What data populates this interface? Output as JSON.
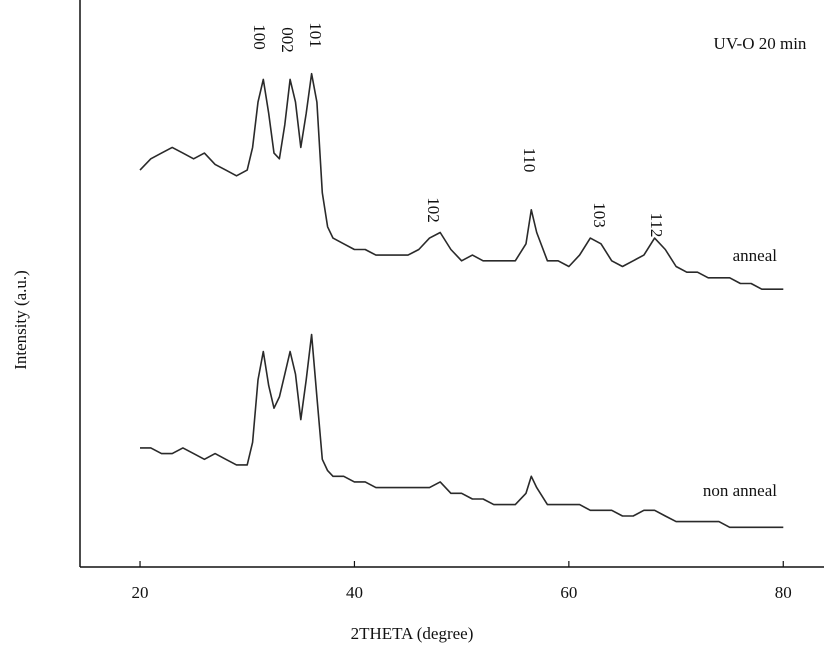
{
  "chart_data": {
    "type": "line",
    "title": "UV-O 20 min",
    "x_label": "2THETA (degree)",
    "y_label": "Intensity (a.u.)",
    "annotations": [
      "100",
      "002",
      "101",
      "102",
      "110",
      "103",
      "112"
    ],
    "x": [
      20,
      21,
      22,
      23,
      24,
      25,
      26,
      27,
      28,
      29,
      30,
      30.5,
      31,
      31.5,
      32,
      32.5,
      33,
      33.5,
      34,
      34.5,
      35,
      35.5,
      36,
      36.5,
      37,
      37.5,
      38,
      39,
      40,
      41,
      42,
      43,
      44,
      45,
      46,
      47,
      48,
      49,
      50,
      51,
      52,
      53,
      54,
      55,
      56,
      56.5,
      57,
      58,
      59,
      60,
      61,
      62,
      63,
      64,
      65,
      66,
      67,
      68,
      69,
      70,
      71,
      72,
      73,
      74,
      75,
      76,
      77,
      78,
      79,
      80
    ],
    "series": [
      {
        "name": "anneal",
        "color": "#2a2a2a",
        "values": [
          70,
          72,
          73,
          74,
          73,
          72,
          73,
          71,
          70,
          69,
          70,
          74,
          82,
          86,
          80,
          73,
          72,
          78,
          86,
          82,
          74,
          80,
          87,
          82,
          66,
          60,
          58,
          57,
          56,
          56,
          55,
          55,
          55,
          55,
          56,
          58,
          59,
          56,
          54,
          55,
          54,
          54,
          54,
          54,
          57,
          63,
          59,
          54,
          54,
          53,
          55,
          58,
          57,
          54,
          53,
          54,
          55,
          58,
          56,
          53,
          52,
          52,
          51,
          51,
          51,
          50,
          50,
          49,
          49,
          49
        ]
      },
      {
        "name": "non anneal",
        "color": "#2a2a2a",
        "values": [
          21,
          21,
          20,
          20,
          21,
          20,
          19,
          20,
          19,
          18,
          18,
          22,
          33,
          38,
          32,
          28,
          30,
          34,
          38,
          34,
          26,
          33,
          41,
          30,
          19,
          17,
          16,
          16,
          15,
          15,
          14,
          14,
          14,
          14,
          14,
          14,
          15,
          13,
          13,
          12,
          12,
          11,
          11,
          11,
          13,
          16,
          14,
          11,
          11,
          11,
          11,
          10,
          10,
          10,
          9,
          9,
          10,
          10,
          9,
          8,
          8,
          8,
          8,
          8,
          7,
          7,
          7,
          7,
          7,
          7
        ]
      }
    ],
    "xlim": [
      14.4,
      83.8
    ],
    "ylim": [
      0,
      100
    ],
    "xticks": [
      20,
      40,
      60,
      80
    ]
  }
}
